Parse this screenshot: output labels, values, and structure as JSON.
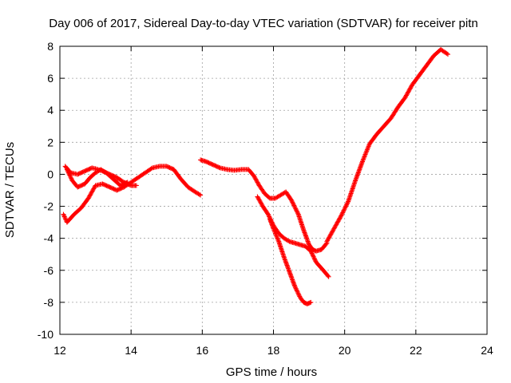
{
  "chart_data": {
    "type": "scatter",
    "title": "Day 006 of 2017, Sidereal Day-to-day VTEC variation (SDTVAR) for receiver pitn",
    "xlabel": "GPS time / hours",
    "ylabel": "SDTVAR / TECUs",
    "xlim": [
      12,
      24
    ],
    "ylim": [
      -10,
      8
    ],
    "xticks": [
      12,
      14,
      16,
      18,
      20,
      22,
      24
    ],
    "yticks": [
      -10,
      -8,
      -6,
      -4,
      -2,
      0,
      2,
      4,
      6,
      8
    ],
    "x_tick_labels": [
      "12",
      "14",
      "16",
      "18",
      "20",
      "22",
      "24"
    ],
    "y_tick_labels": [
      "-10",
      "-8",
      "-6",
      "-4",
      "-2",
      "0",
      "2",
      "4",
      "6",
      "8"
    ],
    "grid": true,
    "legend": "none",
    "marker_color": "#ff0000",
    "marker": "plus",
    "series": [
      {
        "x": [
          12.15,
          12.3,
          12.5,
          12.7,
          12.9,
          13.0,
          13.2,
          13.4,
          13.6,
          13.8,
          14.0,
          14.15
        ],
        "y": [
          0.5,
          0.1,
          0.0,
          0.2,
          0.4,
          0.35,
          0.2,
          0.0,
          -0.2,
          -0.5,
          -0.7,
          -0.7
        ]
      },
      {
        "x": [
          12.2,
          12.35,
          12.5,
          12.7,
          12.85,
          13.0,
          13.15,
          13.3,
          13.5,
          13.7,
          13.9
        ],
        "y": [
          0.3,
          -0.4,
          -0.8,
          -0.6,
          -0.2,
          0.1,
          0.3,
          0.1,
          -0.3,
          -0.7,
          -0.5
        ]
      },
      {
        "x": [
          12.1,
          12.2,
          12.4,
          12.6,
          12.8,
          13.0,
          13.2,
          13.4,
          13.6,
          13.8,
          14.0,
          14.2,
          14.4,
          14.6,
          14.8,
          15.0,
          15.2,
          15.4,
          15.6,
          15.8,
          15.95
        ],
        "y": [
          -2.5,
          -3.0,
          -2.5,
          -2.1,
          -1.5,
          -0.7,
          -0.6,
          -0.8,
          -1.0,
          -0.8,
          -0.5,
          -0.2,
          0.1,
          0.4,
          0.5,
          0.5,
          0.3,
          -0.3,
          -0.8,
          -1.1,
          -1.3
        ]
      },
      {
        "x": [
          15.95,
          16.1,
          16.3,
          16.5,
          16.7,
          16.9,
          17.1,
          17.3,
          17.45,
          17.6,
          17.75,
          17.9,
          18.05,
          18.2,
          18.35,
          18.5,
          18.7,
          18.85,
          19.0,
          19.1,
          19.2,
          19.35,
          19.5
        ],
        "y": [
          0.9,
          0.8,
          0.6,
          0.4,
          0.3,
          0.25,
          0.3,
          0.3,
          -0.1,
          -0.7,
          -1.2,
          -1.5,
          -1.5,
          -1.3,
          -1.1,
          -1.6,
          -2.5,
          -3.5,
          -4.4,
          -4.7,
          -4.8,
          -4.7,
          -4.3
        ]
      },
      {
        "x": [
          17.55,
          17.7,
          17.85,
          18.0,
          18.15,
          18.3,
          18.45,
          18.6,
          18.75,
          18.9,
          19.05,
          19.2,
          19.4,
          19.55
        ],
        "y": [
          -1.4,
          -2.0,
          -2.5,
          -3.2,
          -3.7,
          -4.0,
          -4.2,
          -4.3,
          -4.4,
          -4.5,
          -4.8,
          -5.5,
          -6.0,
          -6.4
        ]
      },
      {
        "x": [
          17.9,
          18.0,
          18.15,
          18.3,
          18.45,
          18.6,
          18.75,
          18.85,
          18.95,
          19.05
        ],
        "y": [
          -2.8,
          -3.4,
          -4.2,
          -5.2,
          -6.1,
          -7.0,
          -7.7,
          -8.0,
          -8.1,
          -8.0
        ]
      },
      {
        "x": [
          19.5,
          19.7,
          19.9,
          20.1,
          20.3,
          20.5,
          20.7,
          20.9,
          21.1,
          21.3,
          21.5,
          21.7,
          21.9,
          22.1,
          22.3,
          22.5,
          22.7,
          22.9
        ],
        "y": [
          -4.2,
          -3.4,
          -2.6,
          -1.7,
          -0.4,
          0.8,
          1.9,
          2.5,
          3.0,
          3.5,
          4.2,
          4.8,
          5.6,
          6.2,
          6.8,
          7.4,
          7.8,
          7.5
        ]
      }
    ]
  }
}
